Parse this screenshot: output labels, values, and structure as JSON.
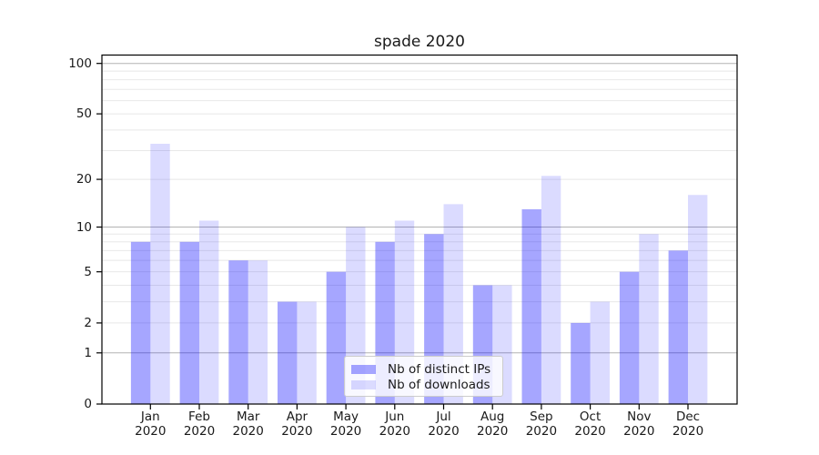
{
  "chart_data": {
    "type": "bar",
    "title": "spade 2020",
    "xlabel": "",
    "ylabel": "",
    "year_label": "2020",
    "categories": [
      "Jan",
      "Feb",
      "Mar",
      "Apr",
      "May",
      "Jun",
      "Jul",
      "Aug",
      "Sep",
      "Oct",
      "Nov",
      "Dec"
    ],
    "series": [
      {
        "name": "Nb of distinct IPs",
        "color": "#a6a6f8",
        "fill": "rgba(0,0,255,0.35)",
        "values": [
          8,
          8,
          6,
          3,
          5,
          8,
          9,
          4,
          13,
          2,
          5,
          7
        ]
      },
      {
        "name": "Nb of downloads",
        "color": "#dbdbfa",
        "fill": "rgba(0,0,255,0.14)",
        "values": [
          33,
          11,
          6,
          3,
          10,
          11,
          14,
          4,
          21,
          3,
          9,
          16
        ]
      }
    ],
    "axis": {
      "scale": "log1p",
      "yticks": [
        0,
        1,
        2,
        5,
        10,
        20,
        50,
        100
      ],
      "ylim": [
        0,
        112
      ],
      "grid": true,
      "legend_position": "lower center"
    },
    "grid": {
      "major": [
        1,
        10,
        100
      ],
      "minor": [
        2,
        3,
        4,
        5,
        6,
        7,
        8,
        9,
        20,
        30,
        40,
        50,
        60,
        70,
        80,
        90
      ],
      "major_color": "#b3b3b3",
      "minor_color": "#e8e8e8"
    },
    "spine_color": "#000000",
    "text_color": "#1a1a1a"
  }
}
